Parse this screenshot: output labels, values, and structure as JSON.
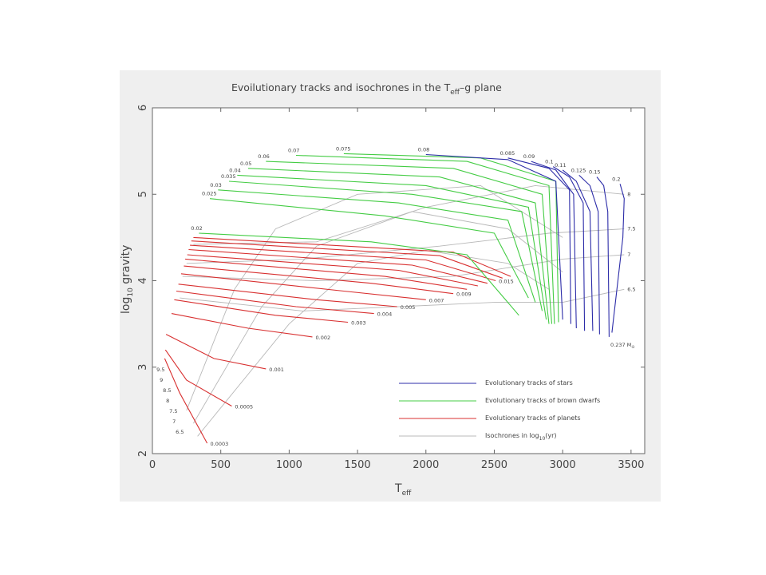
{
  "chart_data": {
    "type": "line",
    "title": "Evoilutionary tracks and isochrones in the T",
    "title_sub": "eff",
    "title_tail": "–g plane",
    "xlabel": "T",
    "xlabel_sub": "eff",
    "ylabel": "log",
    "ylabel_sub": "10",
    "ylabel_tail": " gravity",
    "xlim": [
      0,
      3600
    ],
    "ylim": [
      2,
      6
    ],
    "x_ticks": [
      0,
      500,
      1000,
      1500,
      2000,
      2500,
      3000,
      3500
    ],
    "y_ticks": [
      2,
      3,
      4,
      5,
      6
    ],
    "colors": {
      "stars": "#2c2ca8",
      "brown_dwarfs": "#44cc44",
      "planets": "#d83030",
      "isochrones": "#b8b8b8"
    },
    "legend": {
      "placement": "bottom-right",
      "items": [
        {
          "label": "Evolutionary tracks of stars",
          "color": "#2c2ca8"
        },
        {
          "label": "Evolutionary tracks of brown dwarfs",
          "color": "#44cc44"
        },
        {
          "label": "Evolutionary tracks of planets",
          "color": "#d83030"
        },
        {
          "label": "Isochrones in log",
          "sub": "10",
          "tail": "(yr)",
          "color": "#b8b8b8"
        }
      ]
    },
    "planet_tracks": [
      {
        "mass": "0.0003",
        "points": [
          [
            90,
            3.1
          ],
          [
            200,
            2.7
          ],
          [
            400,
            2.12
          ]
        ]
      },
      {
        "mass": "0.0005",
        "points": [
          [
            95,
            3.2
          ],
          [
            250,
            2.85
          ],
          [
            580,
            2.55
          ]
        ]
      },
      {
        "mass": "0.001",
        "points": [
          [
            100,
            3.38
          ],
          [
            450,
            3.1
          ],
          [
            830,
            2.98
          ]
        ]
      },
      {
        "mass": "0.002",
        "points": [
          [
            140,
            3.62
          ],
          [
            700,
            3.45
          ],
          [
            1170,
            3.35
          ]
        ]
      },
      {
        "mass": "0.003",
        "points": [
          [
            160,
            3.78
          ],
          [
            900,
            3.6
          ],
          [
            1430,
            3.52
          ]
        ]
      },
      {
        "mass": "0.004",
        "points": [
          [
            175,
            3.88
          ],
          [
            1050,
            3.7
          ],
          [
            1620,
            3.62
          ]
        ]
      },
      {
        "mass": "0.005",
        "points": [
          [
            190,
            3.96
          ],
          [
            1200,
            3.78
          ],
          [
            1790,
            3.7
          ]
        ]
      },
      {
        "mass": "0.007",
        "points": [
          [
            210,
            4.08
          ],
          [
            1400,
            3.88
          ],
          [
            2000,
            3.78
          ]
        ]
      },
      {
        "mass": "0.009",
        "points": [
          [
            230,
            4.17
          ],
          [
            1600,
            3.97
          ],
          [
            2200,
            3.85
          ]
        ]
      },
      {
        "mass": null,
        "points": [
          [
            240,
            4.25
          ],
          [
            1700,
            4.05
          ],
          [
            2300,
            3.9
          ]
        ]
      },
      {
        "mass": null,
        "points": [
          [
            255,
            4.3
          ],
          [
            1800,
            4.12
          ],
          [
            2380,
            3.94
          ]
        ]
      },
      {
        "mass": null,
        "points": [
          [
            265,
            4.36
          ],
          [
            1900,
            4.18
          ],
          [
            2450,
            3.97
          ]
        ]
      },
      {
        "mass": "0.015",
        "points": [
          [
            275,
            4.41
          ],
          [
            2000,
            4.24
          ],
          [
            2510,
            4.0
          ]
        ]
      },
      {
        "mass": null,
        "points": [
          [
            285,
            4.46
          ],
          [
            2100,
            4.29
          ],
          [
            2560,
            4.03
          ]
        ]
      },
      {
        "mass": null,
        "points": [
          [
            300,
            4.5
          ],
          [
            2200,
            4.33
          ],
          [
            2620,
            4.05
          ]
        ]
      }
    ],
    "brown_dwarf_tracks": [
      {
        "mass": "0.02",
        "points": [
          [
            340,
            4.55
          ],
          [
            1600,
            4.45
          ],
          [
            2300,
            4.3
          ],
          [
            2680,
            3.6
          ]
        ]
      },
      {
        "mass": "0.025",
        "points": [
          [
            420,
            4.95
          ],
          [
            1700,
            4.75
          ],
          [
            2500,
            4.55
          ],
          [
            2750,
            3.8
          ]
        ]
      },
      {
        "mass": "0.03",
        "points": [
          [
            480,
            5.05
          ],
          [
            1800,
            4.9
          ],
          [
            2600,
            4.7
          ],
          [
            2800,
            3.75
          ]
        ]
      },
      {
        "mass": "0.035",
        "points": [
          [
            560,
            5.15
          ],
          [
            1900,
            5.0
          ],
          [
            2700,
            4.8
          ],
          [
            2850,
            3.65
          ]
        ]
      },
      {
        "mass": "0.04",
        "points": [
          [
            620,
            5.22
          ],
          [
            2000,
            5.1
          ],
          [
            2750,
            4.85
          ],
          [
            2880,
            3.55
          ]
        ]
      },
      {
        "mass": "0.05",
        "points": [
          [
            700,
            5.3
          ],
          [
            2100,
            5.2
          ],
          [
            2800,
            4.9
          ],
          [
            2900,
            3.5
          ]
        ]
      },
      {
        "mass": "0.06",
        "points": [
          [
            830,
            5.38
          ],
          [
            2200,
            5.3
          ],
          [
            2850,
            5.0
          ],
          [
            2920,
            3.5
          ]
        ]
      },
      {
        "mass": "0.07",
        "points": [
          [
            1050,
            5.45
          ],
          [
            2300,
            5.38
          ],
          [
            2900,
            5.1
          ],
          [
            2940,
            3.5
          ]
        ]
      },
      {
        "mass": "0.075",
        "points": [
          [
            1400,
            5.47
          ],
          [
            2400,
            5.42
          ],
          [
            2950,
            5.15
          ],
          [
            2970,
            3.52
          ]
        ]
      }
    ],
    "star_tracks": [
      {
        "mass": "0.08",
        "points": [
          [
            2000,
            5.46
          ],
          [
            2600,
            5.4
          ],
          [
            2950,
            5.15
          ],
          [
            3000,
            3.55
          ]
        ]
      },
      {
        "mass": "0.085",
        "points": [
          [
            2600,
            5.42
          ],
          [
            2900,
            5.3
          ],
          [
            3050,
            5.05
          ],
          [
            3060,
            3.5
          ]
        ]
      },
      {
        "mass": "0.09",
        "points": [
          [
            2770,
            5.38
          ],
          [
            2950,
            5.28
          ],
          [
            3080,
            5.0
          ],
          [
            3100,
            3.45
          ]
        ]
      },
      {
        "mass": "0.1",
        "points": [
          [
            2930,
            5.32
          ],
          [
            3050,
            5.2
          ],
          [
            3150,
            4.9
          ],
          [
            3160,
            3.42
          ]
        ]
      },
      {
        "mass": "0.11",
        "points": [
          [
            3000,
            5.28
          ],
          [
            3100,
            5.15
          ],
          [
            3200,
            4.8
          ],
          [
            3220,
            3.42
          ]
        ]
      },
      {
        "mass": "0.125",
        "points": [
          [
            3120,
            5.22
          ],
          [
            3200,
            5.1
          ],
          [
            3260,
            4.8
          ],
          [
            3270,
            3.38
          ]
        ]
      },
      {
        "mass": "0.15",
        "points": [
          [
            3250,
            5.2
          ],
          [
            3300,
            5.1
          ],
          [
            3330,
            4.8
          ],
          [
            3340,
            3.35
          ]
        ]
      },
      {
        "mass": "0.2",
        "points": [
          [
            3420,
            5.12
          ],
          [
            3450,
            4.95
          ],
          [
            3440,
            4.5
          ],
          [
            3360,
            3.4
          ]
        ]
      }
    ],
    "isochrones": [
      {
        "label": "8",
        "points": [
          [
            300,
            4.42
          ],
          [
            1200,
            4.45
          ],
          [
            2000,
            4.85
          ],
          [
            2800,
            5.1
          ],
          [
            3450,
            5.0
          ]
        ]
      },
      {
        "label": "7.5",
        "points": [
          [
            250,
            4.2
          ],
          [
            1100,
            4.25
          ],
          [
            2100,
            4.4
          ],
          [
            2900,
            4.55
          ],
          [
            3450,
            4.6
          ]
        ]
      },
      {
        "label": "7",
        "points": [
          [
            220,
            4.05
          ],
          [
            1200,
            4.0
          ],
          [
            2200,
            4.05
          ],
          [
            3000,
            4.25
          ],
          [
            3450,
            4.3
          ]
        ]
      },
      {
        "label": "6.5",
        "points": [
          [
            200,
            3.8
          ],
          [
            1100,
            3.65
          ],
          [
            2500,
            3.75
          ],
          [
            3000,
            3.75
          ],
          [
            3450,
            3.9
          ]
        ]
      },
      {
        "label": null,
        "points": [
          [
            330,
            2.2
          ],
          [
            1000,
            3.5
          ],
          [
            1500,
            4.2
          ],
          [
            2000,
            4.35
          ],
          [
            2600,
            4.2
          ],
          [
            2900,
            3.9
          ]
        ]
      },
      {
        "label": null,
        "points": [
          [
            300,
            2.35
          ],
          [
            800,
            3.7
          ],
          [
            1200,
            4.4
          ],
          [
            1900,
            4.8
          ],
          [
            2600,
            4.6
          ],
          [
            3000,
            4.1
          ]
        ]
      },
      {
        "label": null,
        "points": [
          [
            250,
            2.5
          ],
          [
            600,
            3.9
          ],
          [
            900,
            4.6
          ],
          [
            1500,
            5.0
          ],
          [
            2400,
            5.1
          ],
          [
            3000,
            4.5
          ]
        ]
      }
    ],
    "isochrone_edge_labels": [
      "9.5",
      "9",
      "8.5",
      "8",
      "7.5",
      "7",
      "6.5"
    ],
    "star_annotation": "0.237 M",
    "star_annotation_sub": "⊙"
  }
}
